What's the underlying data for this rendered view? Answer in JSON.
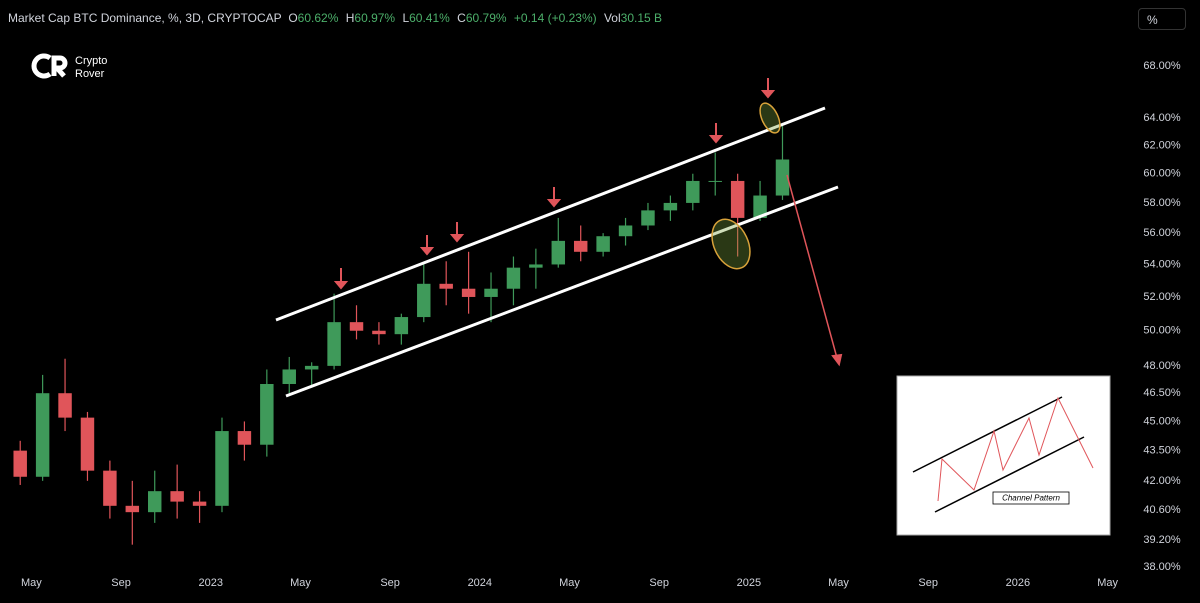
{
  "chart_data": {
    "type": "candlestick",
    "header": {
      "symbol": "Market Cap BTC Dominance, %, 3D, CRYPTOCAP",
      "o_label": "O",
      "o": "60.62%",
      "h_label": "H",
      "h": "60.97%",
      "l_label": "L",
      "l": "60.41%",
      "c_label": "C",
      "c": "60.79%",
      "change": "+0.14 (+0.23%)",
      "vol_label": "Vol",
      "vol": "30.15 B"
    },
    "scale_button": "%",
    "brand": [
      "Crypto",
      "Rover"
    ],
    "inset_label": "Channel Pattern",
    "log": true,
    "grid": false,
    "up_color": "#3f9a5a",
    "down_color": "#e0555a",
    "x": [
      "2022-04",
      "2022-05",
      "2022-06",
      "2022-07",
      "2022-08",
      "2022-09",
      "2022-10",
      "2022-11",
      "2022-12",
      "2023-01",
      "2023-02",
      "2023-03",
      "2023-04",
      "2023-05",
      "2023-06",
      "2023-07",
      "2023-08",
      "2023-09",
      "2023-10",
      "2023-11",
      "2023-12",
      "2024-01",
      "2024-02",
      "2024-03",
      "2024-04",
      "2024-05",
      "2024-06",
      "2024-07",
      "2024-08",
      "2024-09",
      "2024-10",
      "2024-11",
      "2024-12",
      "2025-01",
      "2025-02"
    ],
    "open": [
      43.5,
      42.2,
      46.5,
      45.2,
      42.5,
      40.8,
      40.5,
      41.5,
      41.0,
      40.8,
      44.5,
      43.8,
      47.0,
      47.8,
      48.0,
      50.5,
      50.0,
      49.8,
      50.8,
      52.8,
      52.5,
      52.0,
      52.5,
      53.8,
      54.0,
      55.5,
      54.8,
      55.8,
      56.5,
      57.5,
      58.0,
      59.5,
      59.5,
      57.0,
      58.5
    ],
    "high": [
      44.0,
      47.5,
      48.4,
      45.5,
      43.0,
      42.0,
      42.5,
      42.8,
      41.5,
      45.2,
      45.0,
      47.8,
      48.5,
      48.2,
      52.2,
      51.5,
      50.5,
      51.0,
      54.0,
      54.2,
      54.8,
      53.5,
      54.5,
      55.0,
      57.0,
      56.5,
      56.0,
      57.0,
      58.0,
      58.5,
      60.0,
      61.5,
      60.0,
      59.5,
      63.5
    ],
    "low": [
      41.8,
      42.0,
      44.5,
      42.0,
      40.2,
      39.0,
      40.0,
      40.2,
      40.0,
      40.5,
      43.0,
      43.2,
      46.5,
      46.8,
      47.8,
      49.5,
      49.2,
      49.2,
      50.5,
      51.5,
      51.0,
      50.5,
      51.5,
      52.5,
      53.8,
      54.2,
      54.5,
      55.2,
      56.2,
      56.8,
      57.5,
      58.5,
      54.5,
      56.8,
      58.2
    ],
    "close": [
      42.2,
      46.5,
      45.2,
      42.5,
      40.8,
      40.5,
      41.5,
      41.0,
      40.8,
      44.5,
      43.8,
      47.0,
      47.8,
      48.0,
      50.5,
      50.0,
      49.8,
      50.8,
      52.8,
      52.5,
      52.0,
      52.5,
      53.8,
      54.0,
      55.5,
      54.8,
      55.8,
      56.5,
      57.5,
      58.0,
      59.5,
      59.5,
      57.0,
      58.5,
      61.0
    ],
    "xlim": [
      "2022-04",
      "2026-06"
    ],
    "xticks": [
      {
        "value": "2022-05",
        "label": "May"
      },
      {
        "value": "2022-09",
        "label": "Sep"
      },
      {
        "value": "2023-01",
        "label": "2023"
      },
      {
        "value": "2023-05",
        "label": "May"
      },
      {
        "value": "2023-09",
        "label": "Sep"
      },
      {
        "value": "2024-01",
        "label": "2024"
      },
      {
        "value": "2024-05",
        "label": "May"
      },
      {
        "value": "2024-09",
        "label": "Sep"
      },
      {
        "value": "2025-01",
        "label": "2025"
      },
      {
        "value": "2025-05",
        "label": "May"
      },
      {
        "value": "2025-09",
        "label": "Sep"
      },
      {
        "value": "2026-01",
        "label": "2026"
      },
      {
        "value": "2026-05",
        "label": "May"
      }
    ],
    "ylim": [
      37.65,
      70.9
    ],
    "yticks": [
      {
        "value": 38,
        "label": "38.00%"
      },
      {
        "value": 39.2,
        "label": "39.20%"
      },
      {
        "value": 40.6,
        "label": "40.60%"
      },
      {
        "value": 42,
        "label": "42.00%"
      },
      {
        "value": 43.5,
        "label": "43.50%"
      },
      {
        "value": 45,
        "label": "45.00%"
      },
      {
        "value": 46.5,
        "label": "46.50%"
      },
      {
        "value": 48,
        "label": "48.00%"
      },
      {
        "value": 50,
        "label": "50.00%"
      },
      {
        "value": 52,
        "label": "52.00%"
      },
      {
        "value": 54,
        "label": "54.00%"
      },
      {
        "value": 56,
        "label": "56.00%"
      },
      {
        "value": 58,
        "label": "58.00%"
      },
      {
        "value": 60,
        "label": "60.00%"
      },
      {
        "value": 62,
        "label": "62.00%"
      },
      {
        "value": 64,
        "label": "64.00%"
      },
      {
        "value": 68,
        "label": "68.00%"
      }
    ]
  }
}
